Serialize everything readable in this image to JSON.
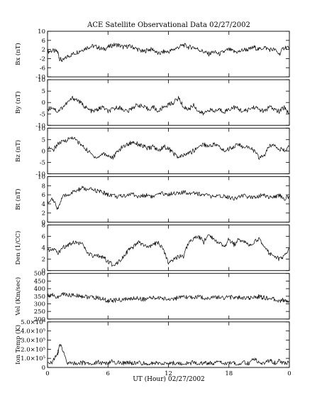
{
  "title": "ACE Satellite Observational Data   02/27/2002",
  "xlabel": "UT (Hour)  02/27/2002",
  "chart_data": [
    {
      "type": "line",
      "ylabel": "Bx (nT)",
      "ylim": [
        -10,
        10
      ],
      "yticks": [
        "10",
        "6",
        "2",
        "-2",
        "-6",
        "-10"
      ],
      "ytick_values": [
        10,
        6,
        2,
        -2,
        -6,
        -10
      ],
      "xlim": [
        0,
        24
      ],
      "x": [
        0,
        0.5,
        1,
        1.2,
        1.5,
        2,
        2.5,
        3,
        3.5,
        4,
        4.5,
        5,
        5.5,
        6,
        6.5,
        7,
        7.5,
        8,
        8.5,
        9,
        9.5,
        10,
        10.5,
        11,
        11.5,
        12,
        12.5,
        13,
        13.5,
        14,
        14.5,
        15,
        15.5,
        16,
        16.5,
        17,
        17.5,
        18,
        18.5,
        19,
        19.5,
        20,
        20.5,
        21,
        21.5,
        22,
        22.5,
        23,
        23.5,
        24
      ],
      "values": [
        1,
        1.5,
        1,
        -2,
        -3,
        -1,
        0,
        1,
        2,
        3,
        3.5,
        3,
        2,
        3,
        4,
        4,
        3,
        3.5,
        3,
        2,
        1,
        2,
        2,
        0,
        1,
        1,
        2,
        3,
        4,
        3,
        3,
        2,
        1,
        0,
        1,
        0,
        1,
        2,
        1,
        1,
        2,
        2,
        3,
        2,
        3,
        2,
        2,
        0,
        3,
        3
      ]
    },
    {
      "type": "line",
      "ylabel": "By (nT)",
      "ylim": [
        -10,
        10
      ],
      "yticks": [
        "10",
        "5",
        "0",
        "-5",
        "-10"
      ],
      "ytick_values": [
        10,
        5,
        0,
        -5,
        -10
      ],
      "xlim": [
        0,
        24
      ],
      "x": [
        0,
        0.5,
        1,
        1.5,
        2,
        2.5,
        3,
        3.5,
        4,
        4.5,
        5,
        5.5,
        6,
        6.5,
        7,
        7.5,
        8,
        8.5,
        9,
        9.5,
        10,
        10.5,
        11,
        11.5,
        12,
        12.5,
        13,
        13.5,
        14,
        14.5,
        15,
        15.5,
        16,
        16.5,
        17,
        17.5,
        18,
        18.5,
        19,
        19.5,
        20,
        20.5,
        21,
        21.5,
        22,
        22.5,
        23,
        23.5,
        24
      ],
      "values": [
        -3,
        -2,
        -4,
        -2,
        0,
        2,
        1,
        -1,
        -3,
        -4,
        -3,
        -2,
        -4,
        -3,
        -2,
        -3,
        -4,
        -2,
        -1,
        -2,
        -3,
        -2,
        -4,
        -2,
        -1,
        0,
        2,
        -2,
        -3,
        -1,
        -4,
        -5,
        -3,
        -4,
        -3,
        -4,
        -3,
        -2,
        -3,
        -4,
        -3,
        -2,
        -3,
        -4,
        -2,
        -3,
        -4,
        -2,
        -5
      ]
    },
    {
      "type": "line",
      "ylabel": "Bz (nT)",
      "ylim": [
        -10,
        10
      ],
      "yticks": [
        "10",
        "5",
        "0",
        "-5",
        "-10"
      ],
      "ytick_values": [
        10,
        5,
        0,
        -5,
        -10
      ],
      "xlim": [
        0,
        24
      ],
      "x": [
        0,
        0.5,
        1,
        1.5,
        2,
        2.5,
        3,
        3.5,
        4,
        4.5,
        5,
        5.5,
        6,
        6.5,
        7,
        7.5,
        8,
        8.5,
        9,
        9.5,
        10,
        10.5,
        11,
        11.5,
        12,
        12.5,
        13,
        13.5,
        14,
        14.5,
        15,
        15.5,
        16,
        16.5,
        17,
        17.5,
        18,
        18.5,
        19,
        19.5,
        20,
        20.5,
        21,
        21.5,
        22,
        22.5,
        23,
        23.5,
        24
      ],
      "values": [
        2,
        0,
        3,
        4,
        5,
        6,
        4,
        2,
        0,
        -2,
        -3,
        -1,
        -2,
        -3,
        0,
        2,
        3,
        4,
        3,
        2,
        1,
        2,
        0,
        2,
        1,
        -1,
        -3,
        -2,
        -1,
        0,
        2,
        3,
        2,
        3,
        2,
        0,
        1,
        2,
        3,
        1,
        2,
        0,
        -3,
        -2,
        2,
        3,
        1,
        0,
        2
      ]
    },
    {
      "type": "line",
      "ylabel": "Bt (nT)",
      "ylim": [
        0,
        10
      ],
      "yticks": [
        "10",
        "8",
        "6",
        "4",
        "2",
        "0"
      ],
      "ytick_values": [
        10,
        8,
        6,
        4,
        2,
        0
      ],
      "xlim": [
        0,
        24
      ],
      "x": [
        0,
        0.5,
        1,
        1.5,
        2,
        2.5,
        3,
        3.5,
        4,
        4.5,
        5,
        5.5,
        6,
        6.5,
        7,
        7.5,
        8,
        8.5,
        9,
        9.5,
        10,
        10.5,
        11,
        11.5,
        12,
        12.5,
        13,
        13.5,
        14,
        14.5,
        15,
        15.5,
        16,
        16.5,
        17,
        17.5,
        18,
        18.5,
        19,
        19.5,
        20,
        20.5,
        21,
        21.5,
        22,
        22.5,
        23,
        23.5,
        24
      ],
      "values": [
        4.5,
        5,
        3,
        5.5,
        6,
        6.5,
        7,
        7.5,
        7,
        7.2,
        6.8,
        6.5,
        6,
        6,
        5.5,
        5.8,
        6,
        6.2,
        5.5,
        5.8,
        6,
        5.5,
        6,
        6.3,
        6,
        6.5,
        6.2,
        6.5,
        6.4,
        6.6,
        6.2,
        6,
        5.8,
        5.5,
        5.6,
        5.8,
        5.5,
        5.2,
        5.6,
        5.8,
        5.4,
        5.6,
        5.8,
        6,
        5.5,
        5.4,
        6,
        5.2,
        5.5
      ]
    },
    {
      "type": "line",
      "ylabel": "Den (1/CC)",
      "ylim": [
        0,
        8
      ],
      "yticks": [
        "8",
        "6",
        "4",
        "2",
        "0"
      ],
      "ytick_values": [
        8,
        6,
        4,
        2,
        0
      ],
      "xlim": [
        0,
        24
      ],
      "x": [
        0,
        0.5,
        1,
        1.5,
        2,
        2.5,
        3,
        3.5,
        4,
        4.5,
        5,
        5.5,
        6,
        6.5,
        7,
        7.5,
        8,
        8.5,
        9,
        9.5,
        10,
        10.5,
        11,
        11.5,
        12,
        12.5,
        13,
        13.5,
        14,
        14.5,
        15,
        15.5,
        16,
        16.5,
        17,
        17.5,
        18,
        18.5,
        19,
        19.5,
        20,
        20.5,
        21,
        21.5,
        22,
        22.5,
        23,
        23.5,
        24
      ],
      "values": [
        3.5,
        4,
        3,
        4,
        4.5,
        5,
        5,
        4.5,
        3,
        2.5,
        2.5,
        2.5,
        1.5,
        1,
        1.5,
        2.5,
        3.5,
        4,
        5,
        4.5,
        4,
        4.5,
        5,
        3.5,
        1.5,
        2,
        2.5,
        2.5,
        5,
        5.5,
        6,
        5,
        6.5,
        5.5,
        5,
        4,
        5.5,
        4.5,
        5.5,
        5,
        4.5,
        5,
        5.5,
        4.5,
        3,
        2.5,
        2,
        2.5,
        4
      ]
    },
    {
      "type": "line",
      "ylabel": "Vel (Km/sec)",
      "ylim": [
        200,
        500
      ],
      "yticks": [
        "500",
        "450",
        "400",
        "350",
        "300",
        "250",
        "200"
      ],
      "ytick_values": [
        500,
        450,
        400,
        350,
        300,
        250,
        200
      ],
      "xlim": [
        0,
        24
      ],
      "x": [
        0,
        0.5,
        1,
        1.5,
        2,
        2.5,
        3,
        3.5,
        4,
        4.5,
        5,
        5.5,
        6,
        6.5,
        7,
        7.5,
        8,
        8.5,
        9,
        9.5,
        10,
        10.5,
        11,
        11.5,
        12,
        12.5,
        13,
        13.5,
        14,
        14.5,
        15,
        15.5,
        16,
        16.5,
        17,
        17.5,
        18,
        18.5,
        19,
        19.5,
        20,
        20.5,
        21,
        21.5,
        22,
        22.5,
        23,
        23.5,
        24
      ],
      "values": [
        355,
        360,
        340,
        365,
        360,
        355,
        355,
        350,
        345,
        340,
        340,
        330,
        320,
        322,
        325,
        328,
        330,
        335,
        338,
        330,
        335,
        338,
        340,
        335,
        330,
        335,
        340,
        340,
        345,
        342,
        345,
        340,
        338,
        340,
        345,
        340,
        345,
        342,
        340,
        338,
        335,
        345,
        348,
        340,
        335,
        330,
        320,
        325,
        320
      ]
    },
    {
      "type": "line",
      "ylabel": "Ion Temp (K)",
      "ylim": [
        0,
        500000
      ],
      "yticks": [
        "5.0×10⁵",
        "4.0×10⁵",
        "3.0×10⁵",
        "2.0×10⁵",
        "1.0×10⁵",
        "0"
      ],
      "ytick_values": [
        500000,
        400000,
        300000,
        200000,
        100000,
        0
      ],
      "xlim": [
        0,
        24
      ],
      "x": [
        0,
        0.5,
        1,
        1.2,
        1.5,
        2,
        2.5,
        3,
        3.5,
        4,
        4.5,
        5,
        5.5,
        6,
        6.5,
        7,
        7.5,
        8,
        8.5,
        9,
        9.5,
        10,
        10.5,
        11,
        11.5,
        12,
        12.5,
        13,
        13.5,
        14,
        14.5,
        15,
        15.5,
        16,
        16.5,
        17,
        17.5,
        18,
        18.5,
        19,
        19.5,
        20,
        20.5,
        21,
        21.5,
        22,
        22.5,
        23,
        23.5,
        24
      ],
      "values": [
        50000,
        60000,
        150000,
        250000,
        200000,
        40000,
        50000,
        45000,
        50000,
        45000,
        40000,
        60000,
        45000,
        40000,
        70000,
        50000,
        45000,
        60000,
        40000,
        50000,
        45000,
        40000,
        50000,
        40000,
        45000,
        40000,
        50000,
        40000,
        45000,
        40000,
        60000,
        40000,
        45000,
        50000,
        40000,
        60000,
        40000,
        50000,
        45000,
        40000,
        50000,
        40000,
        90000,
        60000,
        40000,
        80000,
        50000,
        70000,
        40000,
        50000
      ]
    }
  ],
  "xaxis": {
    "ticks": [
      "0",
      "6",
      "12",
      "18",
      "0"
    ],
    "tick_values": [
      0,
      6,
      12,
      18,
      24
    ]
  }
}
